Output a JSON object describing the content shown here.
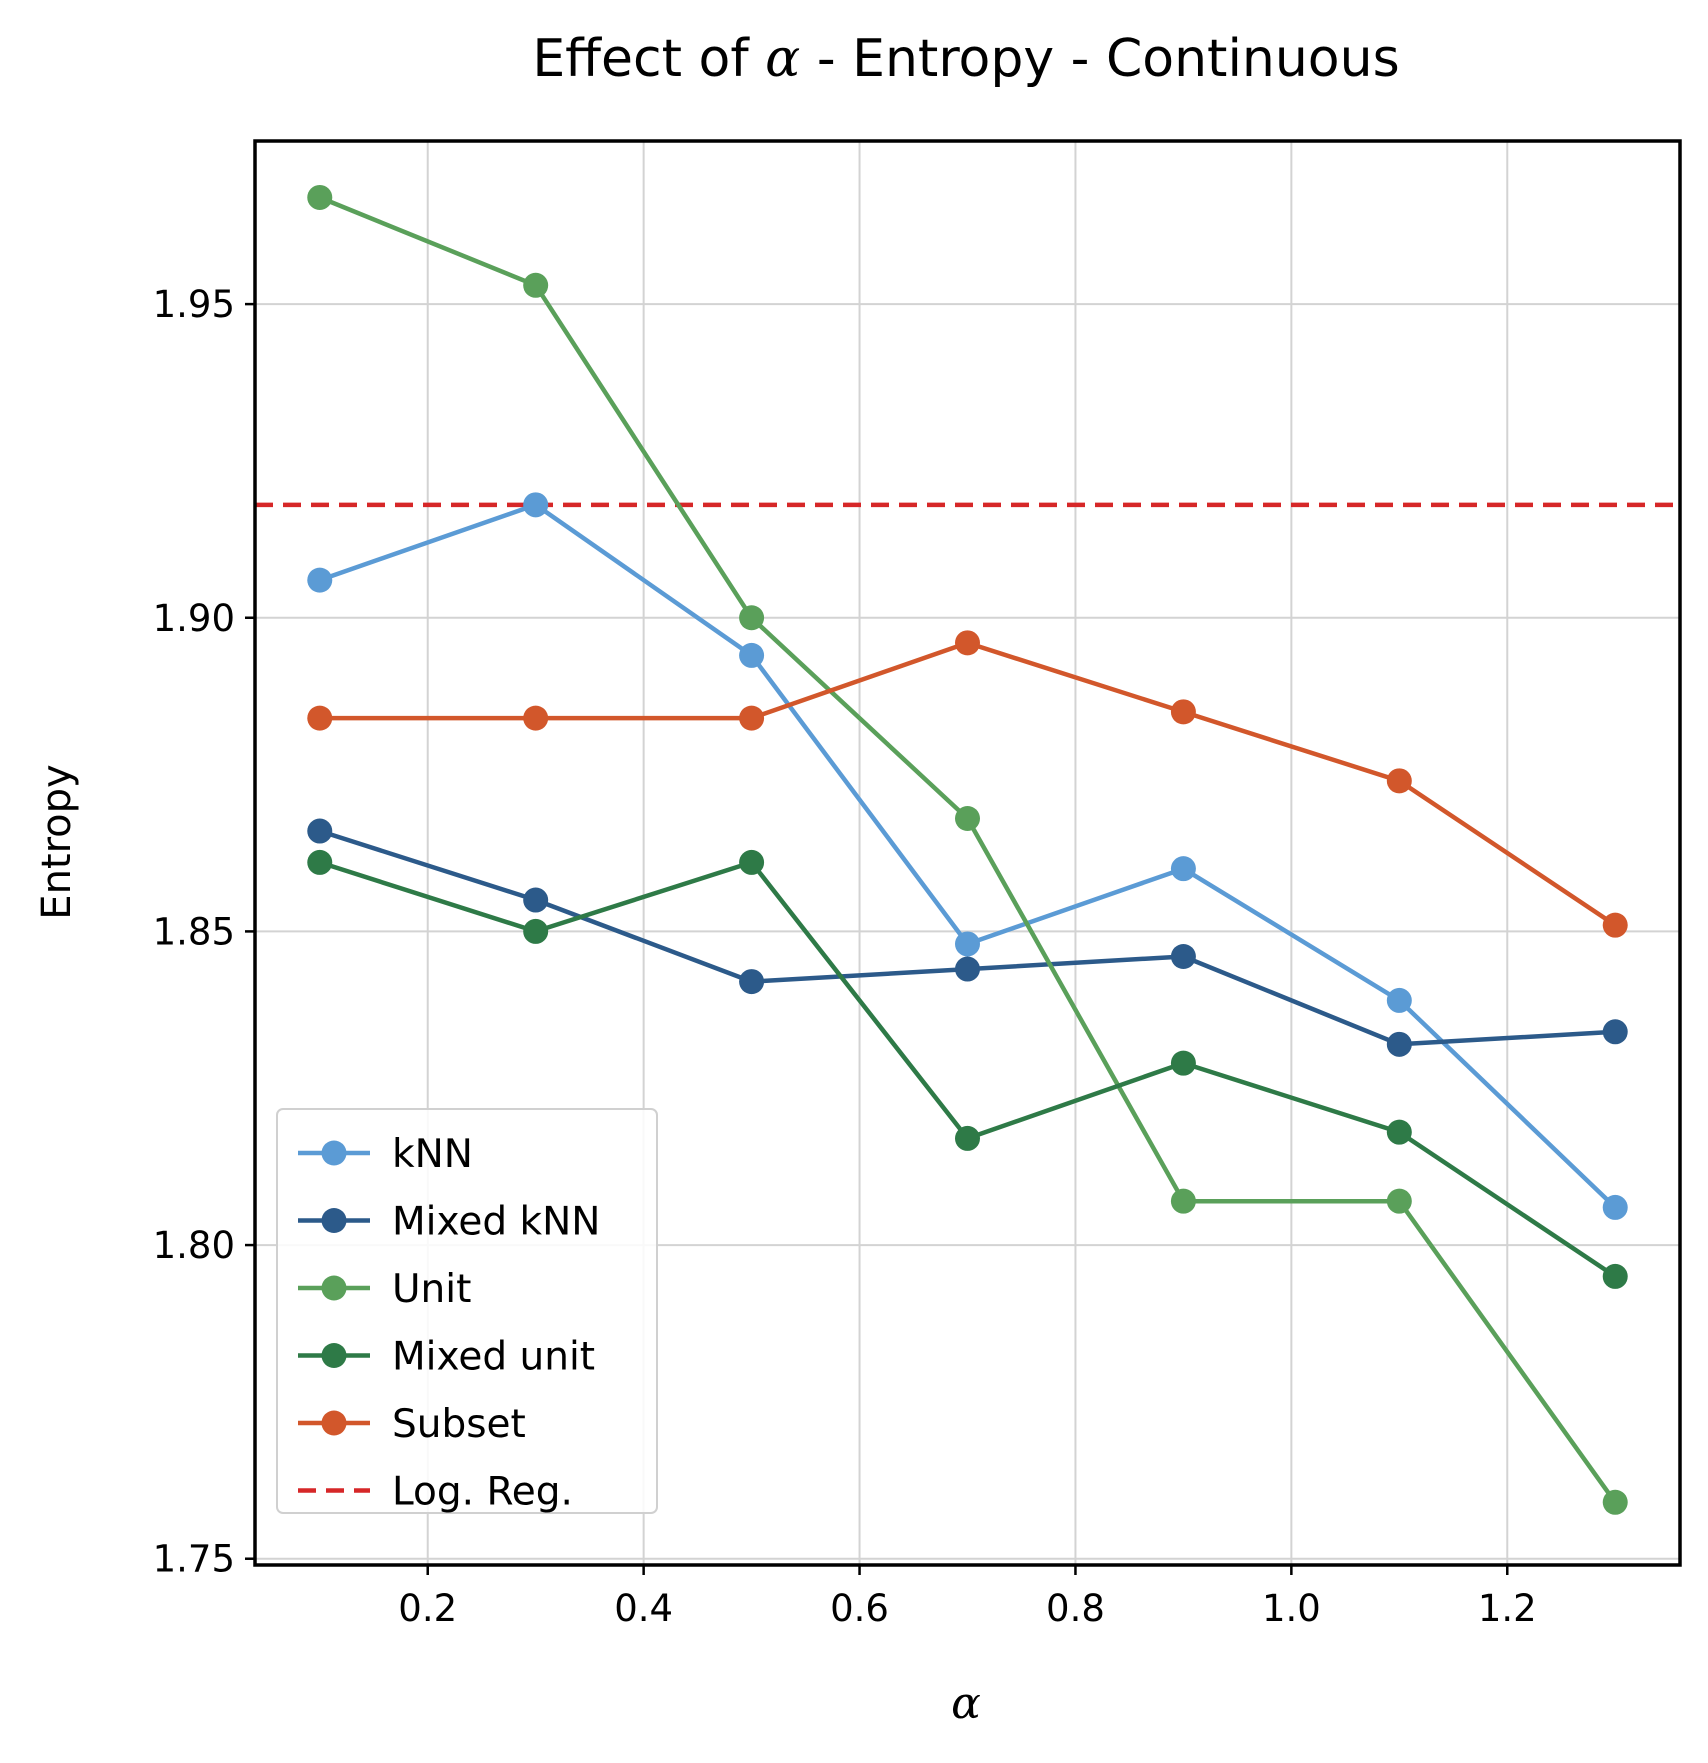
{
  "chart_data": {
    "type": "line",
    "title_prefix": "Effect of ",
    "title_symbol": "α",
    "title_suffix": " - Entropy - Continuous",
    "xlabel": "α",
    "ylabel": "Entropy",
    "x": [
      0.1,
      0.3,
      0.5,
      0.7,
      0.9,
      1.1,
      1.3
    ],
    "xlim": [
      0.04,
      1.36
    ],
    "ylim": [
      1.749,
      1.976
    ],
    "xticks": [
      0.2,
      0.4,
      0.6,
      0.8,
      1.0,
      1.2
    ],
    "xtick_labels": [
      "0.2",
      "0.4",
      "0.6",
      "0.8",
      "1.0",
      "1.2"
    ],
    "yticks": [
      1.75,
      1.8,
      1.85,
      1.9,
      1.95
    ],
    "ytick_labels": [
      "1.75",
      "1.80",
      "1.85",
      "1.90",
      "1.95"
    ],
    "grid": true,
    "legend_position": "lower-left",
    "series": [
      {
        "name": "kNN",
        "color": "#5b9bd5",
        "style": "solid",
        "values": [
          1.906,
          1.918,
          1.894,
          1.848,
          1.86,
          1.839,
          1.806
        ]
      },
      {
        "name": "Mixed kNN",
        "color": "#2c5a8a",
        "style": "solid",
        "values": [
          1.866,
          1.855,
          1.842,
          1.844,
          1.846,
          1.832,
          1.834
        ]
      },
      {
        "name": "Unit",
        "color": "#5aa05a",
        "style": "solid",
        "values": [
          1.967,
          1.953,
          1.9,
          1.868,
          1.807,
          1.807,
          1.759
        ]
      },
      {
        "name": "Mixed unit",
        "color": "#2e7a47",
        "style": "solid",
        "values": [
          1.861,
          1.85,
          1.861,
          1.817,
          1.829,
          1.818,
          1.795
        ]
      },
      {
        "name": "Subset",
        "color": "#d2572b",
        "style": "solid",
        "values": [
          1.884,
          1.884,
          1.884,
          1.896,
          1.885,
          1.874,
          1.851
        ]
      },
      {
        "name": "Log. Reg.",
        "color": "#d62728",
        "style": "dashed",
        "constant": 1.918
      }
    ]
  }
}
